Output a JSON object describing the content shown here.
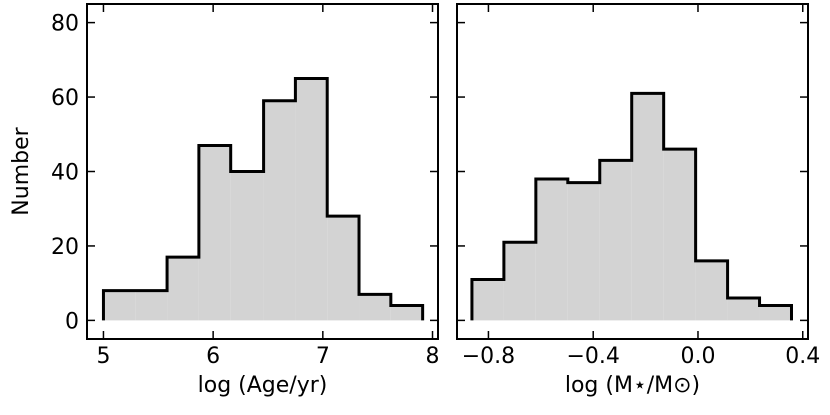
{
  "chart_data": [
    {
      "type": "histogram",
      "xlabel": "log (Age/yr)",
      "ylabel": "Number",
      "bins": [
        5.0,
        5.29,
        5.58,
        5.87,
        6.16,
        6.46,
        6.75,
        7.04,
        7.33,
        7.62,
        7.91
      ],
      "values": [
        8,
        8,
        17,
        47,
        40,
        59,
        65,
        28,
        7,
        4
      ],
      "color": "#d3d3d3",
      "edgecolor": "#000000",
      "xlim": [
        4.85,
        8.05
      ],
      "xticks": [
        5,
        6,
        7,
        8
      ],
      "ylim": [
        -5,
        85
      ],
      "yticks": [
        0,
        20,
        40,
        60,
        80
      ],
      "yticklabels": true
    },
    {
      "type": "histogram",
      "xlabel": "log (M⋆/M⊙)",
      "bins": [
        -0.863,
        -0.741,
        -0.619,
        -0.497,
        -0.375,
        -0.253,
        -0.131,
        -0.009,
        0.113,
        0.235,
        0.357
      ],
      "values": [
        11,
        21,
        38,
        37,
        43,
        61,
        46,
        16,
        6,
        4
      ],
      "color": "#d3d3d3",
      "edgecolor": "#000000",
      "xlim": [
        -0.92,
        0.42
      ],
      "xticks": [
        {
          "value": -0.8,
          "label": "−0.8"
        },
        {
          "value": -0.4,
          "label": "−0.4"
        },
        {
          "value": 0.0,
          "label": "0.0"
        },
        0.4
      ],
      "ylim": [
        -5,
        85
      ],
      "yticks": [
        0,
        20,
        40,
        60,
        80
      ],
      "yticklabels": false
    }
  ]
}
